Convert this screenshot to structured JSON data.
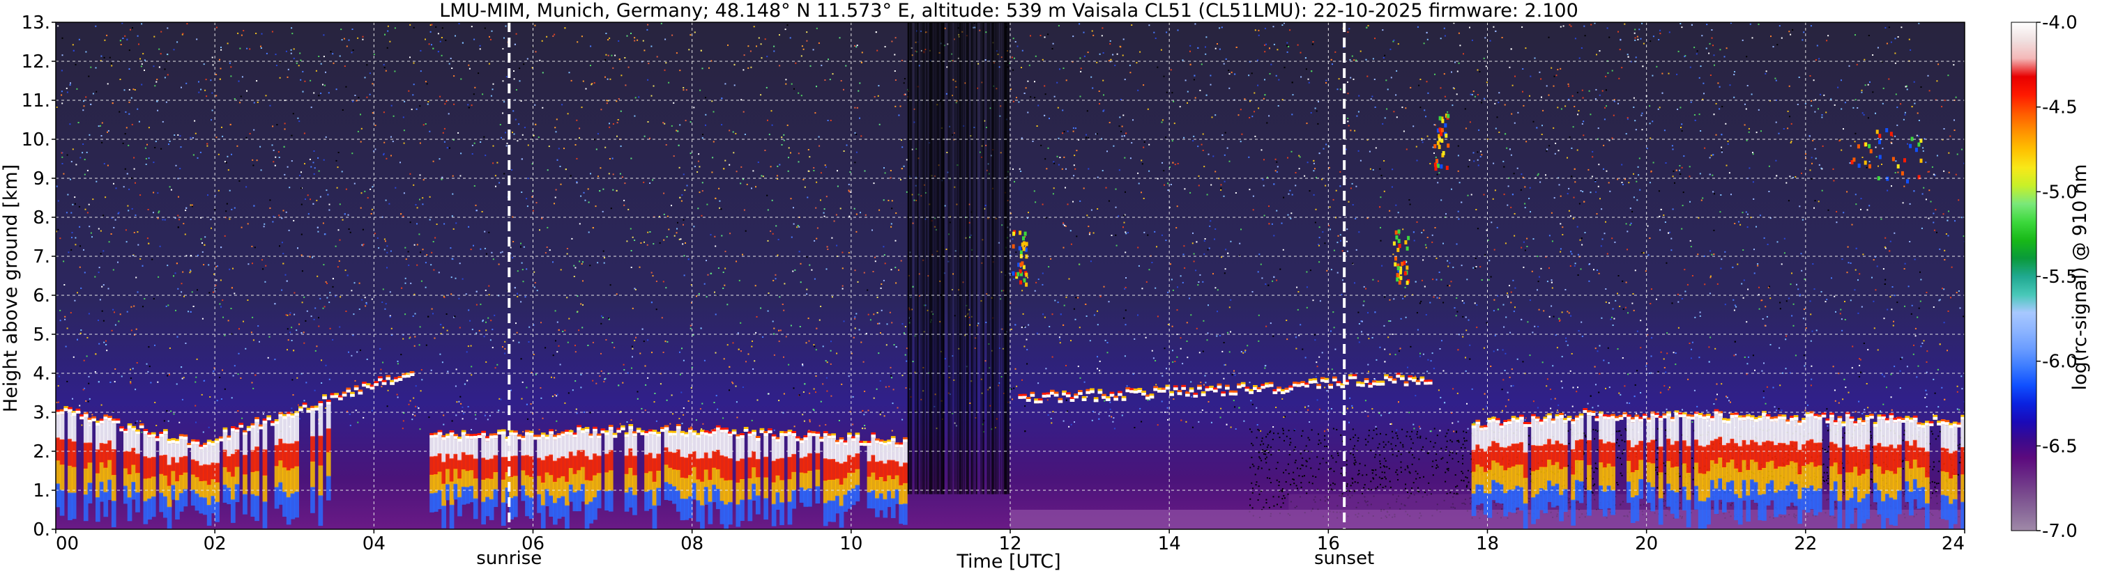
{
  "chart_data": {
    "type": "heatmap",
    "title": "LMU-MIM, Munich, Germany; 48.148° N 11.573° E, altitude: 539 m    Vaisala CL51 (CL51LMU): 22-10-2025    firmware: 2.100",
    "xlabel": "Time [UTC]",
    "ylabel": "Height above ground [km]",
    "xlim": [
      0,
      24
    ],
    "ylim": [
      0,
      13
    ],
    "x_ticks": [
      "00",
      "02",
      "04",
      "06",
      "08",
      "10",
      "12",
      "14",
      "16",
      "18",
      "20",
      "22",
      "24"
    ],
    "y_ticks": [
      "0.",
      "1.",
      "2.",
      "3.",
      "4.",
      "5.",
      "6.",
      "7.",
      "8.",
      "9.",
      "10.",
      "11.",
      "12.",
      "13."
    ],
    "grid": true,
    "colorbar": {
      "label": "log(rc-signal) @ 910 nm",
      "range": [
        -7.0,
        -4.0
      ],
      "ticks": [
        "-4.0",
        "-4.5",
        "-5.0",
        "-5.5",
        "-6.0",
        "-6.5",
        "-7.0"
      ],
      "colors": [
        "#a08aa8",
        "#8a6a9a",
        "#7a4c8e",
        "#6a2a86",
        "#5c0a7e",
        "#3a0a8e",
        "#1a0ab8",
        "#0a22e0",
        "#1050ff",
        "#3a7aff",
        "#6a9cff",
        "#8cb4ff",
        "#a8c8ff",
        "#48c8b8",
        "#20a890",
        "#0a9a3a",
        "#18b818",
        "#3cd83c",
        "#7ae87a",
        "#c8f028",
        "#f8e818",
        "#ffc000",
        "#ff9000",
        "#ff5a00",
        "#ff1a00",
        "#e80000",
        "#f4b8b8",
        "#f0e0e0",
        "#ffffff"
      ]
    },
    "annotations": [
      {
        "label": "sunrise",
        "time": 5.7
      },
      {
        "label": "sunset",
        "time": 16.2
      }
    ],
    "cloud_layers": [
      {
        "start": 0.0,
        "end": 2.0,
        "base_km": [
          3.0,
          2.0
        ]
      },
      {
        "start": 2.0,
        "end": 4.5,
        "base_km": [
          2.3,
          4.0
        ]
      },
      {
        "start": 4.7,
        "end": 7.5,
        "base_km": [
          2.3,
          2.5
        ]
      },
      {
        "start": 7.5,
        "end": 10.7,
        "base_km": [
          2.5,
          2.2
        ]
      },
      {
        "start": 12.1,
        "end": 15.6,
        "base_km": [
          3.3,
          3.6
        ]
      },
      {
        "start": 15.6,
        "end": 17.3,
        "base_km": [
          3.7,
          3.8
        ]
      },
      {
        "start": 17.8,
        "end": 19.1,
        "base_km": [
          2.6,
          2.8
        ]
      },
      {
        "start": 19.1,
        "end": 24.0,
        "base_km": [
          2.9,
          2.7
        ]
      }
    ],
    "high_cloud_patches": [
      {
        "time": 17.4,
        "height_km": 10.0
      },
      {
        "time": 12.1,
        "height_km": 7.0
      },
      {
        "time": 16.9,
        "height_km": 7.0
      },
      {
        "time": 23.0,
        "height_km": 9.6
      }
    ]
  }
}
